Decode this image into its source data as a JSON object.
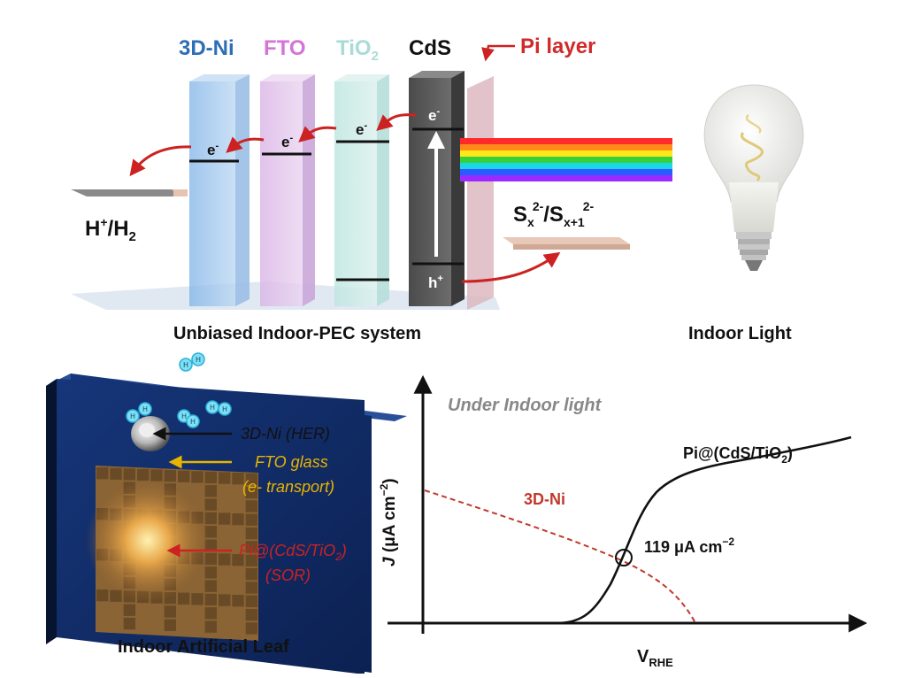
{
  "layers": {
    "ni": "3D-Ni",
    "fto": "FTO",
    "tio2_main": "TiO",
    "tio2_sub": "2",
    "cds": "CdS",
    "pi": "Pi layer"
  },
  "carriers": {
    "electron": "e",
    "electron_sup": "-",
    "hole": "h",
    "hole_sup": "+"
  },
  "reactions": {
    "hydrogen_a": "H",
    "hydrogen_a_sup": "+",
    "hydrogen_b": "/H",
    "hydrogen_b_sub": "2",
    "sulfide_a": "S",
    "sulfide_a_sub": "x",
    "sulfide_a_sup": "2-",
    "sulfide_b": "/S",
    "sulfide_b_sub": "x+1",
    "sulfide_b_sup": "2-"
  },
  "captions": {
    "system": "Unbiased Indoor-PEC system",
    "light": "Indoor Light",
    "leaf": "Indoor Artificial Leaf"
  },
  "h2_atom": "H",
  "leaf_labels": {
    "ni": "3D-Ni (HER)",
    "fto_line1": "FTO glass",
    "fto_line2": "(e- transport)",
    "pi_main": "Pi@(CdS/TiO",
    "pi_sub": "2",
    "pi_end": ")",
    "pi_line2": "(SOR)"
  },
  "plot": {
    "condition": "Under Indoor light",
    "ylabel_j": "J",
    "ylabel_rest": " (μA cm",
    "ylabel_exp": "−2",
    "ylabel_end": ")",
    "xlabel_main": "V",
    "xlabel_sub": "RHE",
    "curve_ni": "3D-Ni",
    "curve_pi_main": "Pi@(CdS/TiO",
    "curve_pi_sub": "2",
    "curve_pi_end": ")",
    "intersection_main": "119 μA cm",
    "intersection_exp": "−2"
  },
  "colors": {
    "ni": "#2e6eb5",
    "fto": "#d574d8",
    "tio2": "#a8dcd8",
    "cds": "#222222",
    "pi": "#d12a2a",
    "arrow_red": "#cc2222",
    "fto_label": "#e8b400",
    "ni_curve": "#c0392b"
  }
}
